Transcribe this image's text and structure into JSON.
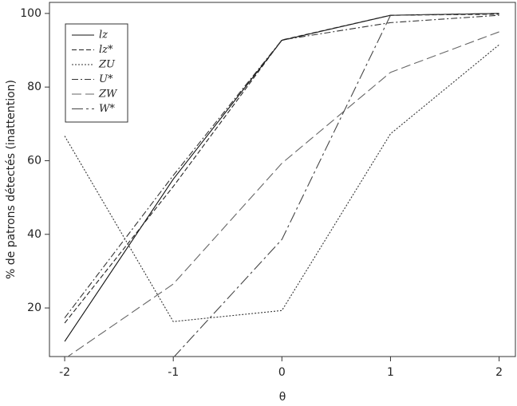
{
  "chart_data": {
    "type": "line",
    "x_label": "θ",
    "y_label": "% de patrons détectés (inattention)",
    "x": [
      -2,
      -1,
      0,
      1,
      2
    ],
    "series": [
      {
        "name": "lz",
        "color": "#111111",
        "dash": "none",
        "values": [
          10.9,
          55,
          92.7,
          99.5,
          100
        ]
      },
      {
        "name": "lz*",
        "color": "#222222",
        "dash": "6,3",
        "values": [
          15.9,
          53,
          92.8,
          99.5,
          99.8
        ]
      },
      {
        "name": "ZU",
        "color": "#333333",
        "dash": "2,2",
        "values": [
          66.7,
          16.3,
          19.3,
          67.3,
          91.5
        ]
      },
      {
        "name": "U*",
        "color": "#333333",
        "dash": "8,3,2,3",
        "values": [
          17.3,
          56,
          92.8,
          97.5,
          99.5
        ]
      },
      {
        "name": "ZW",
        "color": "#666666",
        "dash": "12,5",
        "values": [
          6.2,
          26.5,
          59.3,
          84,
          95
        ]
      },
      {
        "name": "W*",
        "color": "#444444",
        "dash": "14,4,3,4",
        "values": [
          null,
          6.5,
          38.6,
          99.5,
          100
        ]
      }
    ],
    "xlim": [
      -2.14,
      2.15
    ],
    "ylim": [
      6.8,
      103
    ],
    "xticks": [
      -2,
      -1,
      0,
      1,
      2
    ],
    "yticks": [
      20,
      40,
      60,
      80,
      100
    ],
    "legend": "top-left"
  }
}
